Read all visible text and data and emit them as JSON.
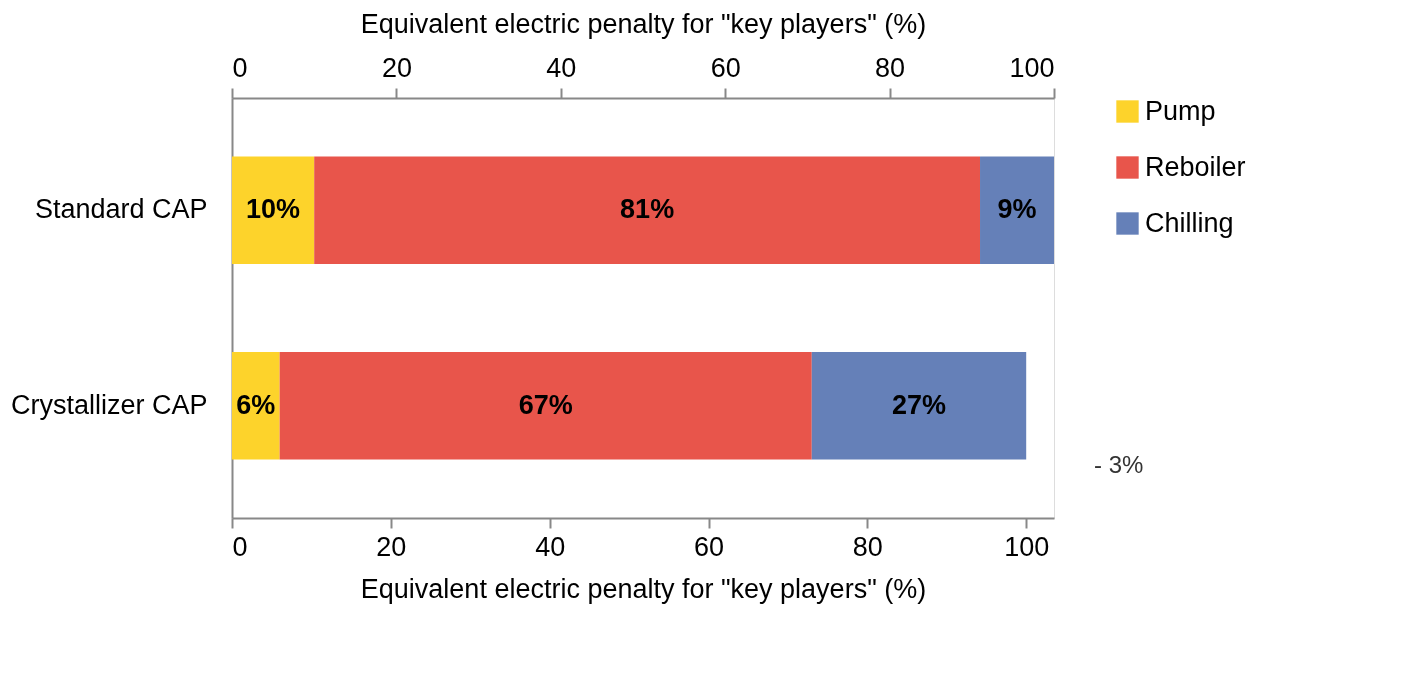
{
  "chart_data": {
    "type": "bar",
    "orientation": "horizontal",
    "stacked": true,
    "categories": [
      "Standard CAP",
      "Crystallizer CAP"
    ],
    "series": [
      {
        "name": "Pump",
        "color": "#fdd32b",
        "axis": "x2",
        "values": [
          10,
          null
        ],
        "value_labels": [
          "10%",
          null
        ]
      },
      {
        "name": "Reboiler",
        "color": "#e8554b",
        "axis": "x2",
        "values": [
          81,
          null
        ],
        "value_labels": [
          "81%",
          null
        ]
      },
      {
        "name": "Chilling",
        "color": "#6580b8",
        "axis": "x2",
        "values": [
          9,
          null
        ],
        "value_labels": [
          "9%",
          null
        ]
      },
      {
        "color": "#fdd32b",
        "values": [
          null,
          6
        ],
        "value_labels": [
          null,
          "6%"
        ]
      },
      {
        "color": "#e8554b",
        "values": [
          null,
          67
        ],
        "value_labels": [
          null,
          "67%"
        ]
      },
      {
        "color": "#6580b8",
        "values": [
          null,
          27
        ],
        "value_labels": [
          null,
          "27%"
        ]
      }
    ],
    "xlabel": "Equivalent electric penalty for \"key players\" (%)",
    "x2label": "Equivalent electric penalty for \"key players\" (%)",
    "xlim": [
      0,
      103.5
    ],
    "xticks": [
      0,
      20,
      40,
      60,
      80,
      100
    ],
    "x2lim": [
      0,
      100
    ],
    "x2ticks": [
      0,
      20,
      40,
      60,
      80,
      100
    ],
    "annotations": [
      "- 3%"
    ],
    "legend": "right",
    "grid": false
  }
}
